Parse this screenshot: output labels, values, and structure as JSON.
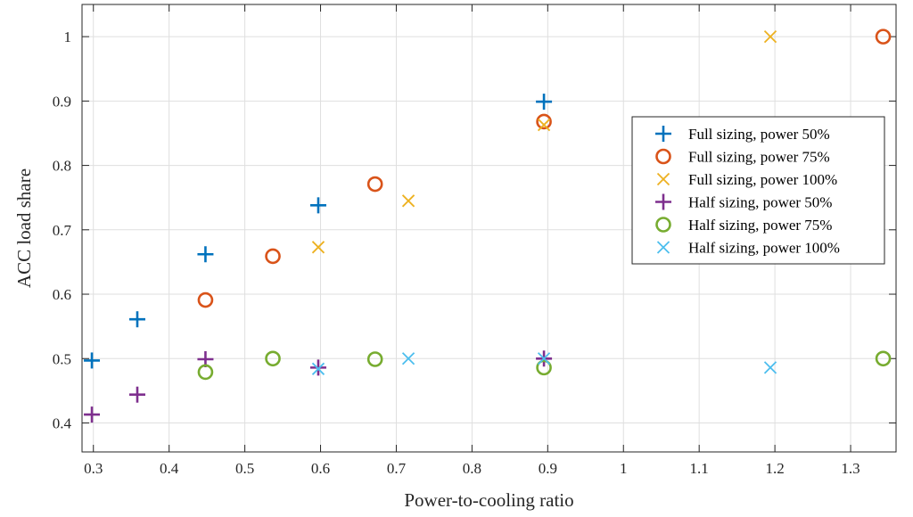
{
  "chart_data": {
    "type": "scatter",
    "title": "",
    "xlabel": "Power-to-cooling ratio",
    "ylabel": "ACC load share",
    "xlim": [
      0.285,
      1.36
    ],
    "ylim": [
      0.355,
      1.05
    ],
    "xticks": [
      0.3,
      0.4,
      0.5,
      0.6,
      0.7,
      0.8,
      0.9,
      1,
      1.1,
      1.2,
      1.3
    ],
    "xtick_labels": [
      "0.3",
      "0.4",
      "0.5",
      "0.6",
      "0.7",
      "0.8",
      "0.9",
      "1",
      "1.1",
      "1.2",
      "1.3"
    ],
    "yticks": [
      0.4,
      0.5,
      0.6,
      0.7,
      0.8,
      0.9,
      1
    ],
    "ytick_labels": [
      "0.4",
      "0.5",
      "0.6",
      "0.7",
      "0.8",
      "0.9",
      "1"
    ],
    "grid": true,
    "legend_position": "right",
    "series": [
      {
        "name": "Full sizing, power 50%",
        "marker": "plus",
        "color": "#0072BD",
        "x": [
          0.298,
          0.358,
          0.448,
          0.597,
          0.895
        ],
        "y": [
          0.497,
          0.561,
          0.662,
          0.738,
          0.899
        ]
      },
      {
        "name": "Full sizing, power 75%",
        "marker": "circle",
        "color": "#D95319",
        "x": [
          0.448,
          0.537,
          0.672,
          0.895,
          1.343
        ],
        "y": [
          0.591,
          0.659,
          0.771,
          0.868,
          1.0
        ]
      },
      {
        "name": "Full sizing, power 100%",
        "marker": "x",
        "color": "#EDB120",
        "x": [
          0.597,
          0.716,
          0.895,
          1.194
        ],
        "y": [
          0.673,
          0.745,
          0.863,
          1.0
        ]
      },
      {
        "name": "Half sizing, power 50%",
        "marker": "plus",
        "color": "#7E2F8E",
        "x": [
          0.298,
          0.358,
          0.448,
          0.597,
          0.895
        ],
        "y": [
          0.413,
          0.444,
          0.499,
          0.486,
          0.5
        ]
      },
      {
        "name": "Half sizing, power 75%",
        "marker": "circle",
        "color": "#77AC30",
        "x": [
          0.448,
          0.537,
          0.672,
          0.895,
          1.343
        ],
        "y": [
          0.479,
          0.5,
          0.499,
          0.486,
          0.5
        ]
      },
      {
        "name": "Half sizing, power 100%",
        "marker": "x",
        "color": "#4DBEEE",
        "x": [
          0.597,
          0.716,
          0.895,
          1.194
        ],
        "y": [
          0.484,
          0.5,
          0.5,
          0.486
        ]
      }
    ]
  }
}
